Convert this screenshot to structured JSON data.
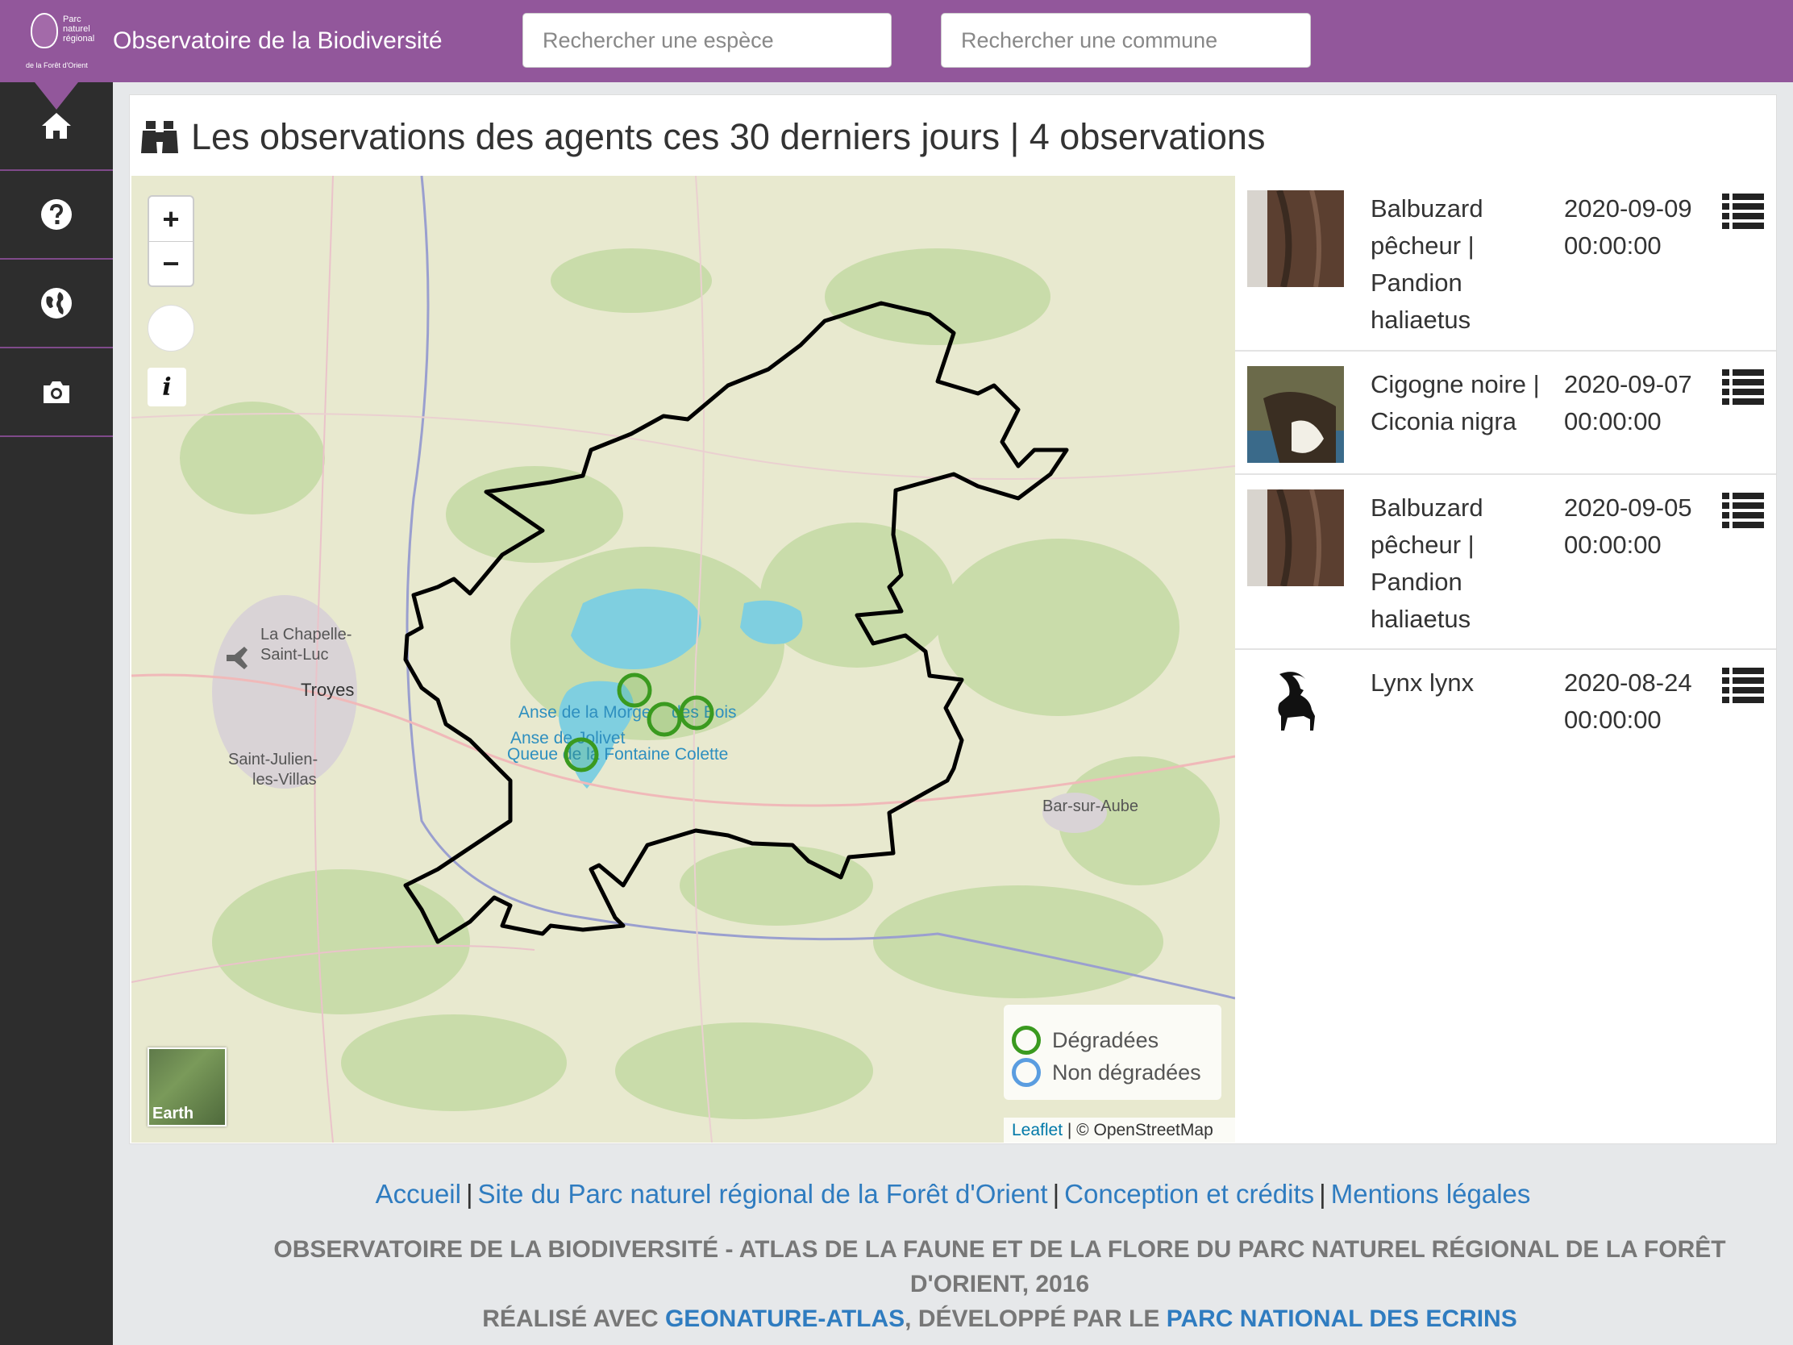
{
  "header": {
    "logo_text": "Parc naturel régional",
    "logo_subtext": "de la Forêt d'Orient",
    "title": "Observatoire de la Biodiversité",
    "search_species_placeholder": "Rechercher une espèce",
    "search_commune_placeholder": "Rechercher une commune",
    "color": "#92579b"
  },
  "sidebar": {
    "items": [
      {
        "name": "home",
        "icon": "home-icon"
      },
      {
        "name": "help",
        "icon": "question-circle-icon"
      },
      {
        "name": "globe",
        "icon": "globe-icon"
      },
      {
        "name": "gallery",
        "icon": "camera-icon"
      }
    ]
  },
  "panel": {
    "title": "Les observations des agents ces 30 derniers jours | 4 observations",
    "title_icon": "binoculars-icon"
  },
  "map": {
    "zoom_in": "+",
    "zoom_out": "−",
    "info_label": "i",
    "earth_label": "Earth",
    "place_labels": [
      "La Chapelle-",
      "Saint-Luc",
      "Troyes",
      "Saint-Julien-",
      "les-Villas",
      "Bar-sur-Aube",
      "Anse de la Morge",
      "Anse de Jolivet",
      "Queue de la Fontaine Colette",
      "des Bois"
    ],
    "legend": {
      "degraded": "Dégradées",
      "non_degraded": "Non dégradées",
      "degraded_color": "#3a9a1f",
      "non_degraded_color": "#5a9de0"
    },
    "attribution_link": "Leaflet",
    "attribution_text": " | © OpenStreetMap"
  },
  "observations": [
    {
      "name": "Balbuzard pêcheur | Pandion haliaetus",
      "date": "2020-09-09 00:00:00",
      "thumb": "osprey-photo"
    },
    {
      "name": "Cigogne noire | Ciconia nigra",
      "date": "2020-09-07 00:00:00",
      "thumb": "stork-photo"
    },
    {
      "name": "Balbuzard pêcheur | Pandion haliaetus",
      "date": "2020-09-05 00:00:00",
      "thumb": "osprey-photo"
    },
    {
      "name": "Lynx lynx",
      "date": "2020-08-24 00:00:00",
      "thumb": "ibex-silhouette-icon"
    }
  ],
  "footer": {
    "links": [
      "Accueil",
      "Site du Parc naturel régional de la Forêt d'Orient",
      "Conception et crédits",
      "Mentions légales"
    ],
    "separator": "|",
    "line1": "OBSERVATOIRE DE LA BIODIVERSITÉ - ATLAS DE LA FAUNE ET DE LA FLORE DU PARC NATUREL RÉGIONAL DE LA FORÊT D'ORIENT, 2016",
    "line2_prefix": "RÉALISÉ AVEC ",
    "line2_link1": "GEONATURE-ATLAS",
    "line2_middle": ", DÉVELOPPÉ PAR LE ",
    "line2_link2": "PARC NATIONAL DES ECRINS"
  }
}
